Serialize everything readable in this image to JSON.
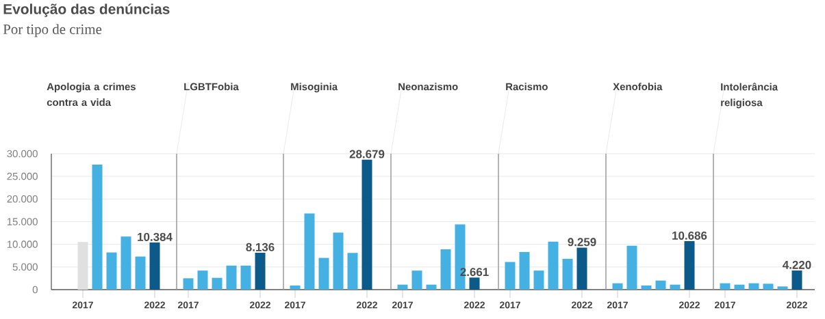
{
  "chart_data": [
    {
      "type": "other",
      "title": "Evolução das denúncias",
      "subtitle": "Por tipo de crime"
    },
    {
      "type": "bar",
      "title": "Apologia a crimes contra a vida",
      "categories": [
        "2017",
        null,
        null,
        null,
        null,
        "2022"
      ],
      "values": [
        10500,
        27600,
        8200,
        11700,
        7300,
        10384
      ],
      "colors": [
        "#e0e0e0",
        "#45b1e3",
        "#45b1e3",
        "#45b1e3",
        "#45b1e3",
        "#0b5a8a"
      ],
      "value_labels": [
        null,
        null,
        null,
        null,
        null,
        "10.384"
      ],
      "ylim": [
        0,
        30000
      ],
      "yticks": [
        0,
        {
          "value": 5000,
          "label": "5.000"
        },
        {
          "value": 10000,
          "label": "10.000"
        },
        {
          "value": 15000,
          "label": "15.000"
        },
        {
          "value": 20000,
          "label": "20.000"
        },
        {
          "value": 25000,
          "label": "25.000"
        },
        {
          "value": 30000,
          "label": "30.000"
        }
      ],
      "grid": "y"
    },
    {
      "type": "bar",
      "title": "LGBTFobia",
      "categories": [
        "2017",
        null,
        null,
        null,
        null,
        "2022"
      ],
      "values": [
        2500,
        4200,
        2600,
        5300,
        5300,
        8136
      ],
      "colors": [
        "#45b1e3",
        "#45b1e3",
        "#45b1e3",
        "#45b1e3",
        "#45b1e3",
        "#0b5a8a"
      ],
      "value_labels": [
        null,
        null,
        null,
        null,
        null,
        "8.136"
      ],
      "ylim": [
        0,
        30000
      ],
      "grid": "y",
      "tick_labels": "x"
    },
    {
      "type": "bar",
      "title": "Misoginia",
      "categories": [
        "2017",
        null,
        null,
        null,
        null,
        "2022"
      ],
      "values": [
        900,
        16800,
        7000,
        12600,
        8100,
        28679
      ],
      "colors": [
        "#45b1e3",
        "#45b1e3",
        "#45b1e3",
        "#45b1e3",
        "#45b1e3",
        "#0b5a8a"
      ],
      "value_labels": [
        null,
        null,
        null,
        null,
        null,
        "28.679"
      ],
      "ylim": [
        0,
        30000
      ],
      "grid": "y",
      "tick_labels": "x"
    },
    {
      "type": "bar",
      "title": "Neonazismo",
      "categories": [
        "2017",
        null,
        null,
        null,
        null,
        "2022"
      ],
      "values": [
        1100,
        4200,
        1100,
        8900,
        14400,
        2661
      ],
      "colors": [
        "#45b1e3",
        "#45b1e3",
        "#45b1e3",
        "#45b1e3",
        "#45b1e3",
        "#0b5a8a"
      ],
      "value_labels": [
        null,
        null,
        null,
        null,
        null,
        "2.661"
      ],
      "ylim": [
        0,
        30000
      ],
      "grid": "y",
      "tick_labels": "x"
    },
    {
      "type": "bar",
      "title": "Racismo",
      "categories": [
        "2017",
        null,
        null,
        null,
        null,
        "2022"
      ],
      "values": [
        6100,
        8300,
        4200,
        10600,
        6800,
        9259
      ],
      "colors": [
        "#45b1e3",
        "#45b1e3",
        "#45b1e3",
        "#45b1e3",
        "#45b1e3",
        "#0b5a8a"
      ],
      "value_labels": [
        null,
        null,
        null,
        null,
        null,
        "9.259"
      ],
      "ylim": [
        0,
        30000
      ],
      "grid": "y",
      "tick_labels": "x"
    },
    {
      "type": "bar",
      "title": "Xenofobia",
      "categories": [
        "2017",
        null,
        null,
        null,
        null,
        "2022"
      ],
      "values": [
        1400,
        9700,
        900,
        2000,
        1100,
        10686
      ],
      "colors": [
        "#45b1e3",
        "#45b1e3",
        "#45b1e3",
        "#45b1e3",
        "#45b1e3",
        "#0b5a8a"
      ],
      "value_labels": [
        null,
        null,
        null,
        null,
        null,
        "10.686"
      ],
      "ylim": [
        0,
        30000
      ],
      "grid": "y",
      "tick_labels": "x"
    },
    {
      "type": "bar",
      "title": "Intolerância religiosa",
      "categories": [
        "2017",
        null,
        null,
        null,
        null,
        "2022"
      ],
      "values": [
        1400,
        1100,
        1400,
        1300,
        700,
        4220
      ],
      "colors": [
        "#45b1e3",
        "#45b1e3",
        "#45b1e3",
        "#45b1e3",
        "#45b1e3",
        "#0b5a8a"
      ],
      "value_labels": [
        null,
        null,
        null,
        null,
        null,
        "4.220"
      ],
      "ylim": [
        0,
        30000
      ],
      "grid": "y",
      "tick_labels": "x"
    }
  ]
}
